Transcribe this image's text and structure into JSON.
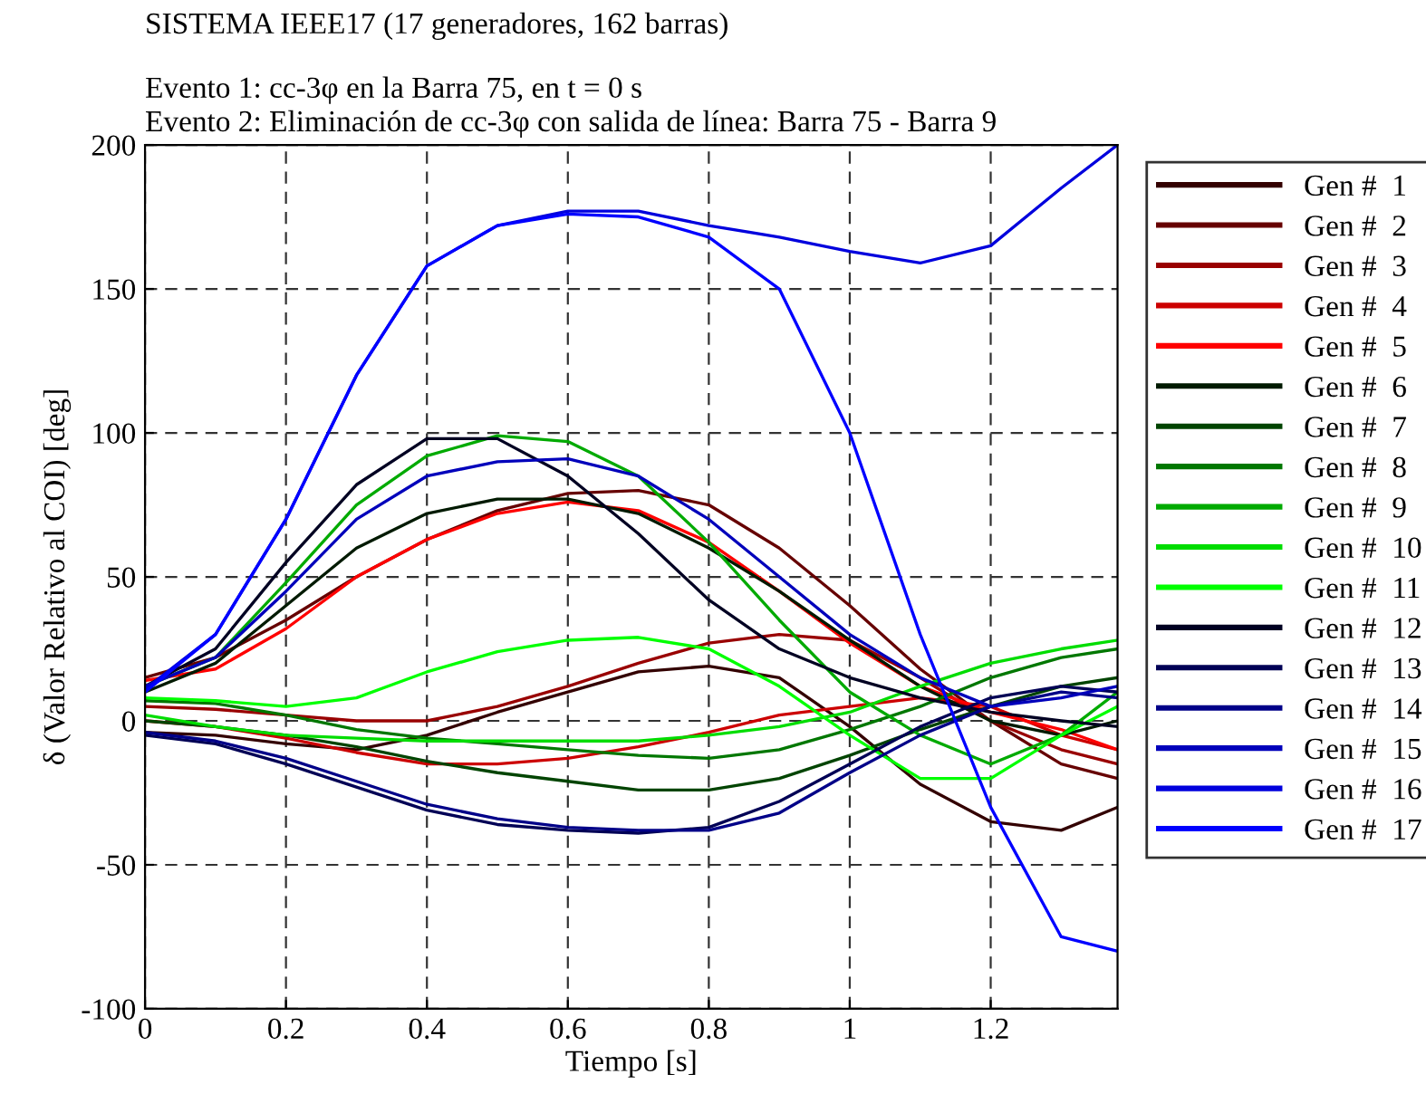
{
  "chart_data": {
    "type": "line",
    "title": "SISTEMA IEEE17 (17 generadores, 162 barras)",
    "subtitle": "Evento 1: cc-3φ en la Barra 75, en t = 0 s\nEvento 2: Eliminación de cc-3φ con salida de línea: Barra 75 - Barra 9",
    "xlabel": "Tiempo [s]",
    "ylabel": "δ (Valor Relativo al COI) [deg]",
    "x": [
      0,
      0.1,
      0.2,
      0.3,
      0.4,
      0.5,
      0.6,
      0.7,
      0.8,
      0.9,
      1.0,
      1.1,
      1.2,
      1.3,
      1.38
    ],
    "xlim": [
      0,
      1.38
    ],
    "xticks": [
      0,
      0.2,
      0.4,
      0.6,
      0.8,
      1,
      1.2
    ],
    "ylim": [
      -100,
      200
    ],
    "yticks": [
      -100,
      -50,
      0,
      50,
      100,
      150,
      200
    ],
    "grid": true,
    "legend": "right",
    "line_style": "solid",
    "marker": "none",
    "series": [
      {
        "name": "Gen #  1",
        "color": "#330000",
        "values": [
          -4,
          -5,
          -8,
          -10,
          -5,
          3,
          10,
          17,
          19,
          15,
          -2,
          -22,
          -35,
          -38,
          -30
        ]
      },
      {
        "name": "Gen #  2",
        "color": "#660000",
        "values": [
          15,
          22,
          35,
          50,
          63,
          73,
          79,
          80,
          75,
          60,
          40,
          18,
          0,
          -15,
          -20
        ]
      },
      {
        "name": "Gen #  3",
        "color": "#990000",
        "values": [
          5,
          4,
          2,
          0,
          0,
          5,
          12,
          20,
          27,
          30,
          28,
          15,
          0,
          -10,
          -15
        ]
      },
      {
        "name": "Gen #  4",
        "color": "#cc0000",
        "values": [
          0,
          -2,
          -6,
          -11,
          -15,
          -15,
          -13,
          -9,
          -4,
          2,
          5,
          8,
          5,
          -5,
          -10
        ]
      },
      {
        "name": "Gen #  5",
        "color": "#ff0000",
        "values": [
          14,
          18,
          32,
          50,
          63,
          72,
          76,
          73,
          62,
          45,
          27,
          12,
          3,
          -3,
          -10
        ]
      },
      {
        "name": "Gen #  6",
        "color": "#001a00",
        "values": [
          10,
          20,
          40,
          60,
          72,
          77,
          77,
          72,
          60,
          45,
          28,
          12,
          0,
          -5,
          0
        ]
      },
      {
        "name": "Gen #  7",
        "color": "#004400",
        "values": [
          0,
          -2,
          -5,
          -9,
          -14,
          -18,
          -21,
          -24,
          -24,
          -20,
          -12,
          -3,
          5,
          12,
          15
        ]
      },
      {
        "name": "Gen #  8",
        "color": "#007700",
        "values": [
          7,
          6,
          2,
          -3,
          -6,
          -8,
          -10,
          -12,
          -13,
          -10,
          -3,
          5,
          15,
          22,
          25
        ]
      },
      {
        "name": "Gen #  9",
        "color": "#00aa00",
        "values": [
          12,
          22,
          48,
          75,
          92,
          99,
          97,
          85,
          62,
          35,
          10,
          -5,
          -15,
          -5,
          10
        ]
      },
      {
        "name": "Gen #  10",
        "color": "#00dd00",
        "values": [
          2,
          -2,
          -5,
          -6,
          -7,
          -7,
          -7,
          -7,
          -5,
          -2,
          3,
          12,
          20,
          25,
          28
        ]
      },
      {
        "name": "Gen #  11",
        "color": "#00ff00",
        "values": [
          8,
          7,
          5,
          8,
          17,
          24,
          28,
          29,
          25,
          12,
          -5,
          -20,
          -20,
          -5,
          5
        ]
      },
      {
        "name": "Gen #  12",
        "color": "#000022",
        "values": [
          12,
          25,
          55,
          82,
          98,
          98,
          85,
          65,
          42,
          25,
          15,
          8,
          3,
          0,
          -2
        ]
      },
      {
        "name": "Gen #  13",
        "color": "#000055",
        "values": [
          -5,
          -8,
          -15,
          -23,
          -31,
          -36,
          -38,
          -39,
          -37,
          -28,
          -15,
          -2,
          8,
          12,
          10
        ]
      },
      {
        "name": "Gen #  14",
        "color": "#000088",
        "values": [
          -4,
          -7,
          -13,
          -21,
          -29,
          -34,
          -37,
          -38,
          -38,
          -32,
          -18,
          -5,
          5,
          10,
          8
        ]
      },
      {
        "name": "Gen #  15",
        "color": "#0000bb",
        "values": [
          12,
          22,
          45,
          70,
          85,
          90,
          91,
          85,
          70,
          50,
          30,
          15,
          5,
          8,
          12
        ]
      },
      {
        "name": "Gen #  16",
        "color": "#0000dd",
        "values": [
          11,
          30,
          70,
          120,
          158,
          172,
          177,
          177,
          172,
          168,
          163,
          159,
          165,
          185,
          200
        ]
      },
      {
        "name": "Gen #  17",
        "color": "#0000ff",
        "values": [
          10,
          30,
          70,
          120,
          158,
          172,
          176,
          175,
          168,
          150,
          100,
          30,
          -30,
          -75,
          -80
        ]
      }
    ]
  }
}
